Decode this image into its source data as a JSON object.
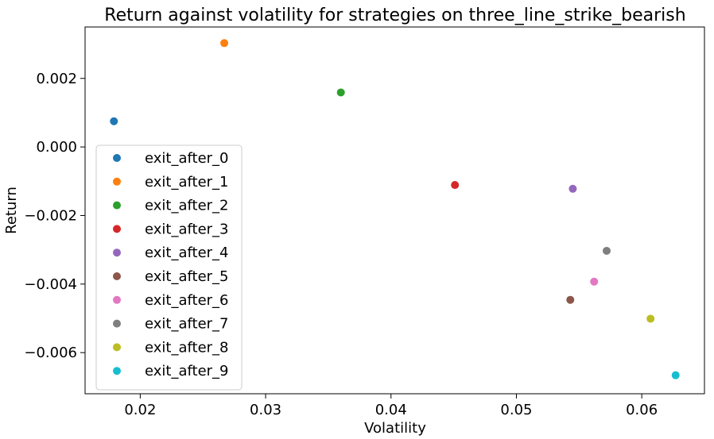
{
  "chart_data": {
    "type": "scatter",
    "title": "Return against volatility for strategies on three_line_strike_bearish",
    "xlabel": "Volatility",
    "ylabel": "Return",
    "xlim": [
      0.0156,
      0.065
    ],
    "ylim": [
      -0.0072,
      0.0035
    ],
    "xticks": [
      0.02,
      0.03,
      0.04,
      0.05,
      0.06
    ],
    "xtick_labels": [
      "0.02",
      "0.03",
      "0.04",
      "0.05",
      "0.06"
    ],
    "yticks": [
      0.002,
      0.0,
      -0.002,
      -0.004,
      -0.006
    ],
    "ytick_labels": [
      "0.002",
      "0.000",
      "−0.002",
      "−0.004",
      "−0.006"
    ],
    "grid": false,
    "legend_position": "lower-left",
    "series": [
      {
        "name": "exit_after_0",
        "color": "#1f77b4",
        "x": [
          0.0179
        ],
        "y": [
          0.00075
        ]
      },
      {
        "name": "exit_after_1",
        "color": "#ff7f0e",
        "x": [
          0.0267
        ],
        "y": [
          0.00303
        ]
      },
      {
        "name": "exit_after_2",
        "color": "#2ca02c",
        "x": [
          0.036
        ],
        "y": [
          0.00159
        ]
      },
      {
        "name": "exit_after_3",
        "color": "#d62728",
        "x": [
          0.0451
        ],
        "y": [
          -0.00111
        ]
      },
      {
        "name": "exit_after_4",
        "color": "#9467bd",
        "x": [
          0.0545
        ],
        "y": [
          -0.00122
        ]
      },
      {
        "name": "exit_after_5",
        "color": "#8c564b",
        "x": [
          0.0543
        ],
        "y": [
          -0.00446
        ]
      },
      {
        "name": "exit_after_6",
        "color": "#e377c2",
        "x": [
          0.0562
        ],
        "y": [
          -0.00393
        ]
      },
      {
        "name": "exit_after_7",
        "color": "#7f7f7f",
        "x": [
          0.0572
        ],
        "y": [
          -0.00303
        ]
      },
      {
        "name": "exit_after_8",
        "color": "#bcbd22",
        "x": [
          0.0607
        ],
        "y": [
          -0.00501
        ]
      },
      {
        "name": "exit_after_9",
        "color": "#17becf",
        "x": [
          0.0627
        ],
        "y": [
          -0.00666
        ]
      }
    ]
  }
}
